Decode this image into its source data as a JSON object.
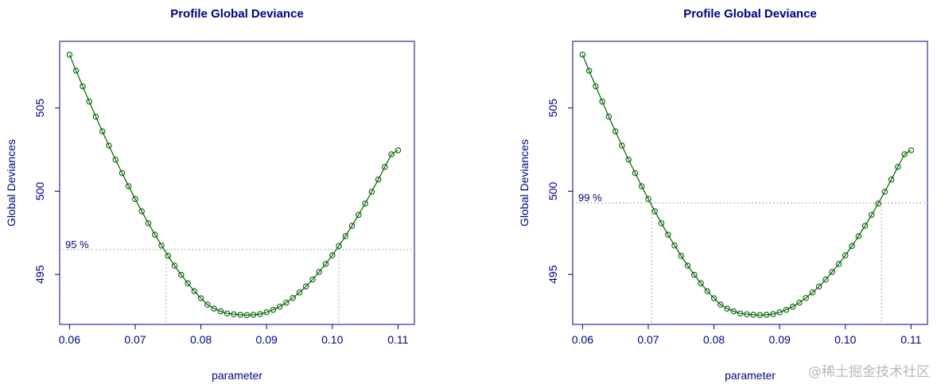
{
  "chart_data": [
    {
      "type": "line",
      "title": "Profile Global Deviance",
      "xlabel": "parameter",
      "ylabel": "Global Deviances",
      "xlim": [
        0.0585,
        0.1125
      ],
      "ylim": [
        492.0,
        509.0
      ],
      "x_ticks": [
        "0.06",
        "0.07",
        "0.08",
        "0.09",
        "0.10",
        "0.11"
      ],
      "y_ticks": [
        "495",
        "500",
        "505"
      ],
      "x": [
        0.06,
        0.061,
        0.062,
        0.063,
        0.064,
        0.065,
        0.066,
        0.067,
        0.068,
        0.069,
        0.07,
        0.071,
        0.072,
        0.073,
        0.074,
        0.075,
        0.076,
        0.077,
        0.078,
        0.079,
        0.08,
        0.081,
        0.082,
        0.083,
        0.084,
        0.085,
        0.086,
        0.087,
        0.088,
        0.089,
        0.09,
        0.091,
        0.092,
        0.093,
        0.094,
        0.095,
        0.096,
        0.097,
        0.098,
        0.099,
        0.1,
        0.101,
        0.102,
        0.103,
        0.104,
        0.105,
        0.106,
        0.107,
        0.108,
        0.109,
        0.11
      ],
      "y": [
        508.2,
        507.24,
        506.3,
        505.38,
        504.48,
        503.6,
        502.74,
        501.9,
        501.09,
        500.3,
        499.53,
        498.79,
        498.08,
        497.39,
        496.74,
        496.12,
        495.53,
        494.98,
        494.47,
        494.0,
        493.57,
        493.19,
        492.95,
        492.79,
        492.66,
        492.61,
        492.58,
        492.56,
        492.58,
        492.62,
        492.73,
        492.88,
        493.07,
        493.31,
        493.59,
        493.92,
        494.28,
        494.7,
        495.15,
        495.63,
        496.15,
        496.71,
        497.3,
        497.92,
        498.58,
        499.26,
        499.97,
        500.7,
        501.46,
        502.22,
        502.46
      ],
      "series": [
        {
          "color": "#006400",
          "marker": "open-circle"
        }
      ],
      "annotation": {
        "label": "95 %",
        "level": 496.5,
        "x_lower": 0.0747,
        "x_upper": 0.101
      },
      "grid": false
    },
    {
      "type": "line",
      "title": "Profile Global Deviance",
      "xlabel": "parameter",
      "ylabel": "Global Deviances",
      "xlim": [
        0.0585,
        0.1125
      ],
      "ylim": [
        492.0,
        509.0
      ],
      "x_ticks": [
        "0.06",
        "0.07",
        "0.08",
        "0.09",
        "0.10",
        "0.11"
      ],
      "y_ticks": [
        "495",
        "500",
        "505"
      ],
      "x": [
        0.06,
        0.061,
        0.062,
        0.063,
        0.064,
        0.065,
        0.066,
        0.067,
        0.068,
        0.069,
        0.07,
        0.071,
        0.072,
        0.073,
        0.074,
        0.075,
        0.076,
        0.077,
        0.078,
        0.079,
        0.08,
        0.081,
        0.082,
        0.083,
        0.084,
        0.085,
        0.086,
        0.087,
        0.088,
        0.089,
        0.09,
        0.091,
        0.092,
        0.093,
        0.094,
        0.095,
        0.096,
        0.097,
        0.098,
        0.099,
        0.1,
        0.101,
        0.102,
        0.103,
        0.104,
        0.105,
        0.106,
        0.107,
        0.108,
        0.109,
        0.11
      ],
      "y": [
        508.2,
        507.24,
        506.3,
        505.38,
        504.48,
        503.6,
        502.74,
        501.9,
        501.09,
        500.3,
        499.53,
        498.79,
        498.08,
        497.39,
        496.74,
        496.12,
        495.53,
        494.98,
        494.47,
        494.0,
        493.57,
        493.19,
        492.95,
        492.79,
        492.66,
        492.61,
        492.58,
        492.56,
        492.58,
        492.62,
        492.73,
        492.88,
        493.07,
        493.31,
        493.59,
        493.92,
        494.28,
        494.7,
        495.15,
        495.63,
        496.15,
        496.71,
        497.3,
        497.92,
        498.58,
        499.26,
        499.97,
        500.7,
        501.46,
        502.22,
        502.46
      ],
      "series": [
        {
          "color": "#006400",
          "marker": "open-circle"
        }
      ],
      "annotation": {
        "label": "99 %",
        "level": 499.3,
        "x_lower": 0.0705,
        "x_upper": 0.1055
      },
      "grid": false
    }
  ],
  "colors": {
    "text": "#00008b",
    "frame": "#00008b",
    "series": "#006400",
    "ref_line": "#888888"
  },
  "watermark": "@稀土掘金技术社区"
}
